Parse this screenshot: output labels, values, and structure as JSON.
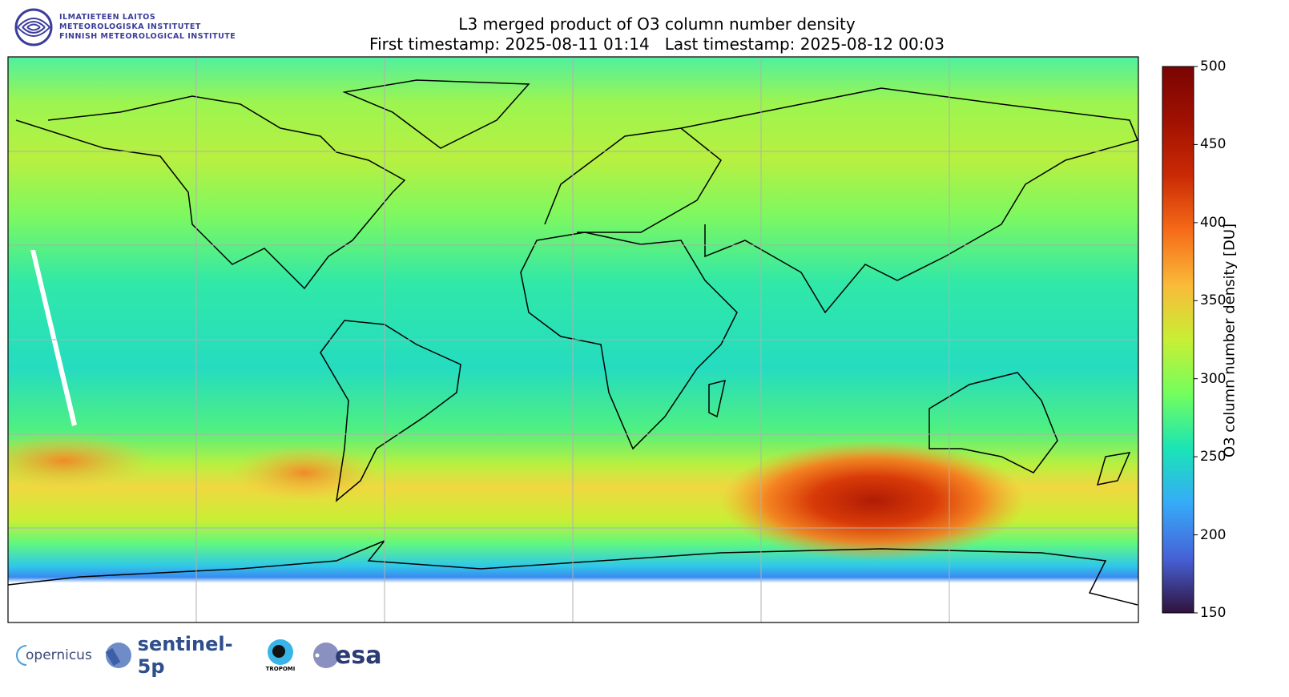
{
  "header": {
    "title": "L3 merged product of O3 column number density",
    "subtitle": "First timestamp: 2025-08-11 01:14   Last timestamp: 2025-08-12 00:03"
  },
  "logo_fmi": {
    "lines": [
      "ILMATIETEEN LAITOS",
      "METEOROLOGISKA INSTITUTET",
      "FINNISH METEOROLOGICAL INSTITUTE"
    ]
  },
  "colorbar": {
    "label": "O3 column number density [DU]",
    "ticks": [
      "500",
      "450",
      "400",
      "350",
      "300",
      "250",
      "200",
      "150"
    ],
    "range": [
      150,
      500
    ],
    "colormap": "turbo"
  },
  "map": {
    "projection": "plate carree",
    "lon_range": [
      -180,
      180
    ],
    "lat_range": [
      -90,
      90
    ],
    "gridlines": true,
    "no_data_color": "#ffffff"
  },
  "footer_logos": {
    "copernicus": "opernicus",
    "sentinel": "sentinel-5p",
    "tropomi": "TROPOMI",
    "esa": "esa"
  }
}
